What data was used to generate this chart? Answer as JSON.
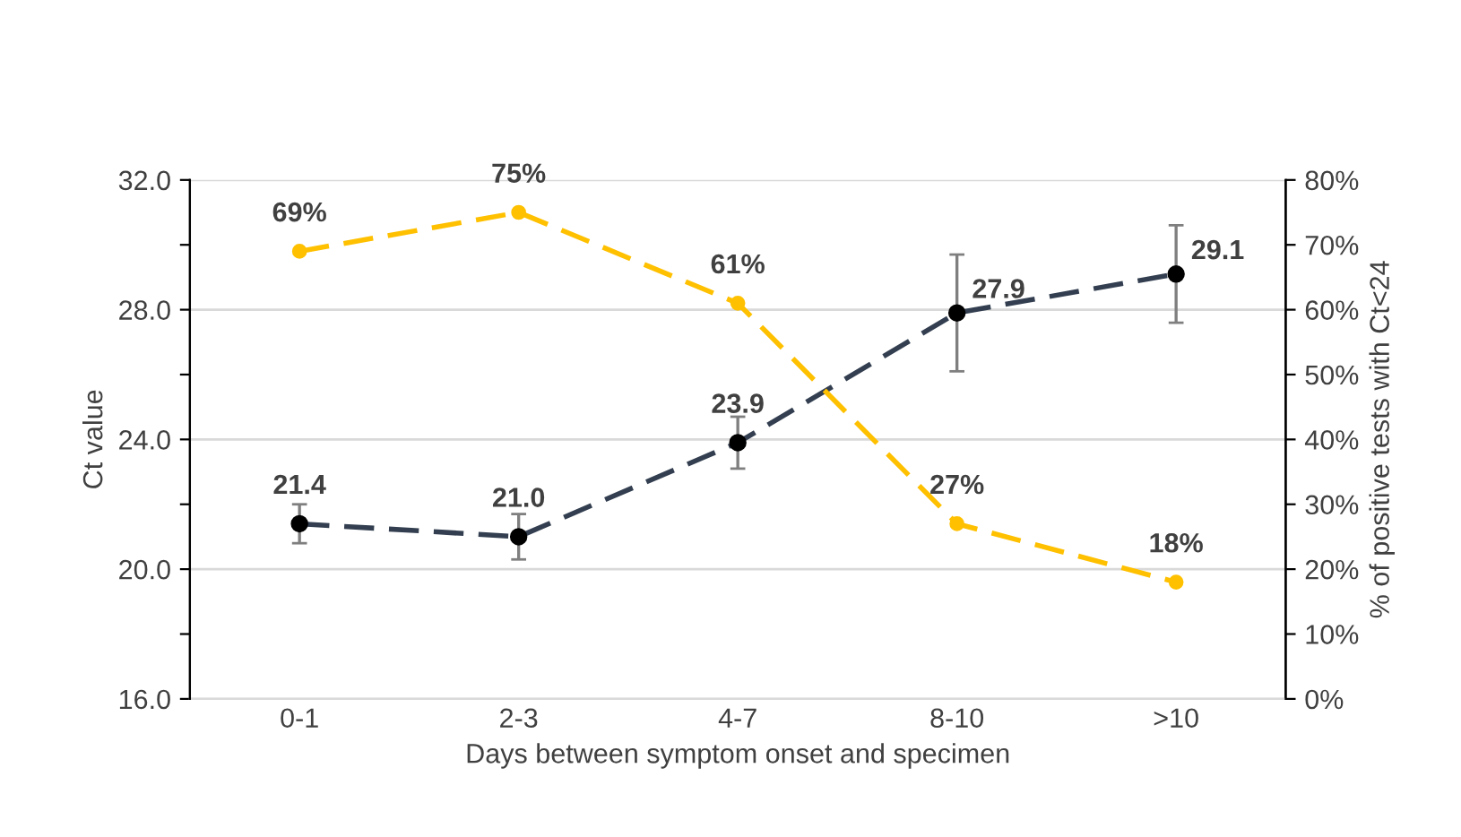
{
  "chart_data": {
    "type": "line",
    "xlabel": "Days between symptom onset and specimen",
    "ylabel": "Ct value",
    "y2label": "% of positive tests with Ct<24",
    "categories": [
      "0-1",
      "2-3",
      "4-7",
      "8-10",
      ">10"
    ],
    "series": [
      {
        "color": "#333f50",
        "values": [
          21.4,
          21.0,
          23.9,
          27.9,
          29.1
        ],
        "errors": [
          0.6,
          0.7,
          0.8,
          1.8,
          1.5
        ],
        "value_labels": [
          "21.4",
          "21.0",
          "23.9",
          "27.9",
          "29.1"
        ],
        "line_style": "dashed",
        "marker": "circle"
      },
      {
        "color": "#ffc000",
        "axis": "y2",
        "values": [
          69,
          75,
          61,
          27,
          18
        ],
        "value_labels": [
          "69%",
          "75%",
          "61%",
          "27%",
          "18%"
        ],
        "line_style": "dashed",
        "marker": "circle"
      }
    ],
    "ylim": [
      16,
      32
    ],
    "yticks": [
      {
        "value": 16,
        "label": "16.0"
      },
      {
        "value": 18,
        "label": null
      },
      {
        "value": 20,
        "label": "20.0"
      },
      {
        "value": 22,
        "label": null
      },
      {
        "value": 24,
        "label": "24.0"
      },
      {
        "value": 26,
        "label": null
      },
      {
        "value": 28,
        "label": "28.0"
      },
      {
        "value": 30,
        "label": null
      },
      {
        "value": 32,
        "label": "32.0"
      }
    ],
    "y2lim": [
      0,
      80
    ],
    "y2ticks": [
      {
        "value": 0,
        "label": "0%"
      },
      {
        "value": 10,
        "label": "10%"
      },
      {
        "value": 20,
        "label": "20%"
      },
      {
        "value": 30,
        "label": "30%"
      },
      {
        "value": 40,
        "label": "40%"
      },
      {
        "value": 50,
        "label": "50%"
      },
      {
        "value": 60,
        "label": "60%"
      },
      {
        "value": 70,
        "label": "70%"
      },
      {
        "value": 80,
        "label": "80%"
      }
    ],
    "grid": "y"
  }
}
